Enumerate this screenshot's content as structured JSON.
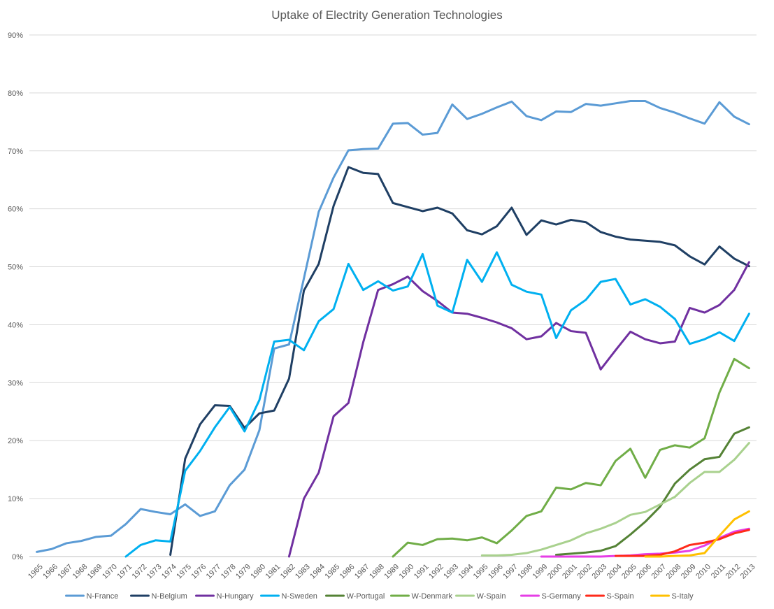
{
  "chart_data": {
    "type": "line",
    "title": "Uptake of Electrity Generation Technologies",
    "xlabel": "",
    "ylabel": "",
    "ylim": [
      0,
      90
    ],
    "y_ticks": [
      "0%",
      "10%",
      "20%",
      "30%",
      "40%",
      "50%",
      "60%",
      "70%",
      "80%",
      "90%"
    ],
    "grid": "horizontal",
    "legend_position": "bottom",
    "categories": [
      "1965",
      "1966",
      "1967",
      "1968",
      "1969",
      "1970",
      "1971",
      "1972",
      "1973",
      "1974",
      "1975",
      "1976",
      "1977",
      "1978",
      "1979",
      "1980",
      "1981",
      "1982",
      "1983",
      "1984",
      "1985",
      "1986",
      "1987",
      "1988",
      "1989",
      "1990",
      "1991",
      "1992",
      "1993",
      "1994",
      "1995",
      "1996",
      "1997",
      "1998",
      "1999",
      "2000",
      "2001",
      "2002",
      "2003",
      "2004",
      "2005",
      "2006",
      "2007",
      "2008",
      "2009",
      "2010",
      "2011",
      "2012",
      "2013"
    ],
    "series": [
      {
        "name": "N-France",
        "color": "#5b9bd5",
        "values": [
          0.8,
          1.3,
          2.3,
          2.7,
          3.4,
          3.6,
          5.6,
          8.2,
          7.7,
          7.3,
          9.0,
          7.0,
          7.8,
          12.3,
          15.0,
          21.8,
          35.9,
          36.6,
          48.0,
          59.5,
          65.4,
          70.1,
          70.3,
          70.4,
          74.7,
          74.8,
          72.8,
          73.1,
          78.0,
          75.5,
          76.4,
          77.5,
          78.5,
          76.0,
          75.3,
          76.8,
          76.7,
          78.1,
          77.8,
          78.2,
          78.6,
          78.6,
          77.4,
          76.6,
          75.6,
          74.7,
          78.4,
          75.9,
          74.6
        ]
      },
      {
        "name": "N-Belgium",
        "color": "#1f3f64",
        "values": [
          null,
          null,
          null,
          null,
          null,
          null,
          null,
          null,
          null,
          0.3,
          16.9,
          22.8,
          26.1,
          26.0,
          22.2,
          24.7,
          25.2,
          30.7,
          45.9,
          50.5,
          60.5,
          67.2,
          66.2,
          66.0,
          61.0,
          60.3,
          59.6,
          60.2,
          59.2,
          56.3,
          55.6,
          57.0,
          60.2,
          55.5,
          58.0,
          57.3,
          58.1,
          57.7,
          56.0,
          55.2,
          54.7,
          54.5,
          54.3,
          53.7,
          51.8,
          50.4,
          53.5,
          51.4,
          50.1
        ]
      },
      {
        "name": "N-Hungary",
        "color": "#7030a0",
        "values": [
          null,
          null,
          null,
          null,
          null,
          null,
          null,
          null,
          null,
          null,
          null,
          null,
          null,
          null,
          null,
          null,
          null,
          0.0,
          10.0,
          14.5,
          24.2,
          26.5,
          37.0,
          46.0,
          47.0,
          48.3,
          45.8,
          44.1,
          42.1,
          41.9,
          41.2,
          40.4,
          39.4,
          37.5,
          38.0,
          40.3,
          38.9,
          38.6,
          32.3,
          35.6,
          38.8,
          37.5,
          36.8,
          37.1,
          42.9,
          42.1,
          43.4,
          46.0,
          50.8
        ]
      },
      {
        "name": "N-Sweden",
        "color": "#00b0f0",
        "values": [
          null,
          null,
          null,
          null,
          null,
          null,
          0.0,
          2.0,
          2.8,
          2.6,
          14.8,
          18.2,
          22.3,
          25.8,
          21.6,
          27.0,
          37.1,
          37.4,
          35.6,
          40.6,
          42.7,
          50.5,
          46.0,
          47.5,
          45.9,
          46.6,
          52.2,
          43.3,
          42.1,
          51.2,
          47.4,
          52.5,
          46.9,
          45.7,
          45.2,
          37.7,
          42.5,
          44.3,
          47.4,
          47.9,
          43.5,
          44.4,
          43.1,
          41.0,
          36.7,
          37.5,
          38.7,
          37.2,
          41.9
        ]
      },
      {
        "name": "W-Portugal",
        "color": "#548235",
        "values": [
          null,
          null,
          null,
          null,
          null,
          null,
          null,
          null,
          null,
          null,
          null,
          null,
          null,
          null,
          null,
          null,
          null,
          null,
          null,
          null,
          null,
          null,
          null,
          null,
          null,
          null,
          null,
          null,
          null,
          null,
          null,
          null,
          null,
          null,
          null,
          0.3,
          0.5,
          0.7,
          1.0,
          1.8,
          3.8,
          6.0,
          8.6,
          12.6,
          15.0,
          16.8,
          17.2,
          21.2,
          22.3
        ]
      },
      {
        "name": "W-Denmark",
        "color": "#70ad47",
        "values": [
          null,
          null,
          null,
          null,
          null,
          null,
          null,
          null,
          null,
          null,
          null,
          null,
          null,
          null,
          null,
          null,
          null,
          null,
          null,
          null,
          null,
          null,
          null,
          null,
          0.0,
          2.4,
          2.0,
          3.0,
          3.1,
          2.8,
          3.3,
          2.3,
          4.5,
          7.0,
          7.8,
          11.9,
          11.6,
          12.7,
          12.3,
          16.5,
          18.6,
          13.6,
          18.4,
          19.2,
          18.8,
          20.4,
          28.3,
          34.1,
          32.5
        ]
      },
      {
        "name": "W-Spain",
        "color": "#a9d18e",
        "values": [
          null,
          null,
          null,
          null,
          null,
          null,
          null,
          null,
          null,
          null,
          null,
          null,
          null,
          null,
          null,
          null,
          null,
          null,
          null,
          null,
          null,
          null,
          null,
          null,
          null,
          null,
          null,
          null,
          null,
          null,
          0.2,
          0.2,
          0.3,
          0.6,
          1.2,
          2.0,
          2.8,
          4.0,
          4.8,
          5.8,
          7.2,
          7.7,
          9.0,
          10.3,
          12.7,
          14.6,
          14.6,
          16.7,
          19.6
        ]
      },
      {
        "name": "S-Germany",
        "color": "#e63ee6",
        "values": [
          null,
          null,
          null,
          null,
          null,
          null,
          null,
          null,
          null,
          null,
          null,
          null,
          null,
          null,
          null,
          null,
          null,
          null,
          null,
          null,
          null,
          null,
          null,
          null,
          null,
          null,
          null,
          null,
          null,
          null,
          null,
          null,
          null,
          null,
          0.0,
          0.0,
          0.0,
          0.0,
          0.0,
          0.1,
          0.2,
          0.4,
          0.5,
          0.7,
          1.0,
          1.9,
          3.2,
          4.3,
          4.8
        ]
      },
      {
        "name": "S-Spain",
        "color": "#ff2a1a",
        "values": [
          null,
          null,
          null,
          null,
          null,
          null,
          null,
          null,
          null,
          null,
          null,
          null,
          null,
          null,
          null,
          null,
          null,
          null,
          null,
          null,
          null,
          null,
          null,
          null,
          null,
          null,
          null,
          null,
          null,
          null,
          null,
          null,
          null,
          null,
          null,
          null,
          null,
          null,
          null,
          0.1,
          0.1,
          0.1,
          0.3,
          0.9,
          2.0,
          2.4,
          3.0,
          4.0,
          4.6
        ]
      },
      {
        "name": "S-Italy",
        "color": "#ffc000",
        "values": [
          null,
          null,
          null,
          null,
          null,
          null,
          null,
          null,
          null,
          null,
          null,
          null,
          null,
          null,
          null,
          null,
          null,
          null,
          null,
          null,
          null,
          null,
          null,
          null,
          null,
          null,
          null,
          null,
          null,
          null,
          null,
          null,
          null,
          null,
          null,
          null,
          null,
          null,
          null,
          null,
          null,
          0.0,
          0.0,
          0.1,
          0.2,
          0.6,
          3.6,
          6.4,
          7.8
        ]
      }
    ]
  }
}
